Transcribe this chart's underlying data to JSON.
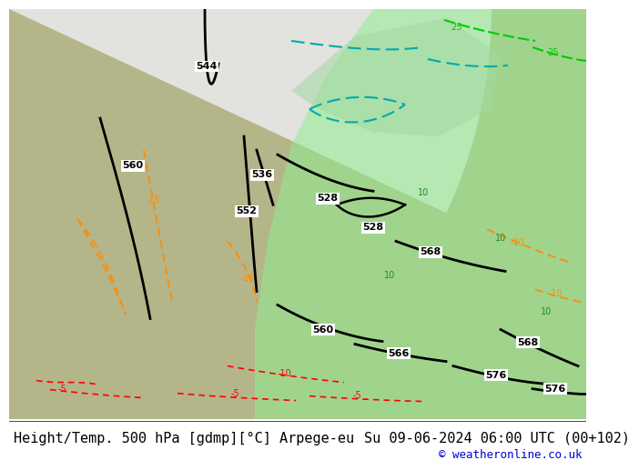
{
  "title_left": "Height/Temp. 500 hPa [gdmp][°C] Arpege-eu",
  "title_right": "Su 09-06-2024 06:00 UTC (00+102)",
  "credit": "© weatheronline.co.uk",
  "bg_map_color": "#b5b58a",
  "footer_text_color": "#000000",
  "credit_color": "#0000cc",
  "font_size_footer": 11
}
